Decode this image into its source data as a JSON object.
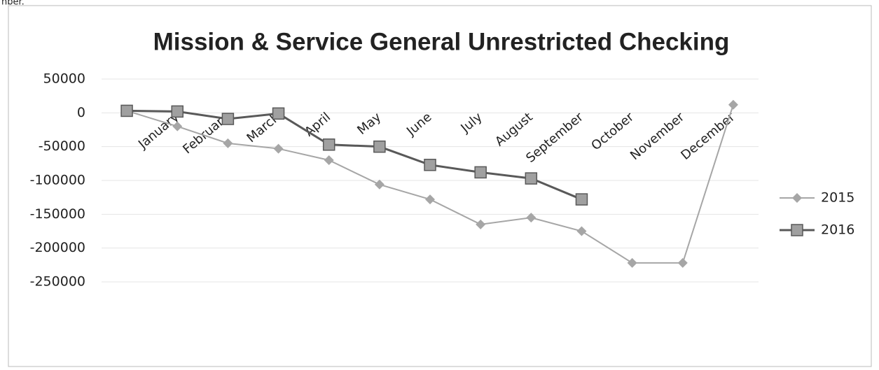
{
  "caption": "nber.",
  "chart_data": {
    "type": "line",
    "title": "Mission & Service General  Unrestricted Checking",
    "categories": [
      null,
      "January",
      "February",
      "March",
      "April",
      "May",
      "June",
      "July",
      "August",
      "September",
      "October",
      "November",
      "December"
    ],
    "series": [
      {
        "name": "2015",
        "color": "#a6a6a6",
        "marker": "diamond",
        "values": [
          3000,
          -20000,
          -45000,
          -53000,
          -70000,
          -106000,
          -128000,
          -165000,
          -155000,
          -175000,
          -222000,
          -222000,
          12000
        ]
      },
      {
        "name": "2016",
        "color": "#595959",
        "marker": "square",
        "values": [
          3000,
          2000,
          -9000,
          -1000,
          -47000,
          -50000,
          -77000,
          -88000,
          -97000,
          -128000,
          null,
          null,
          null
        ]
      }
    ],
    "ylim": [
      -250000,
      50000
    ],
    "yticks": [
      50000,
      0,
      -50000,
      -100000,
      -150000,
      -200000,
      -250000
    ],
    "grid": true,
    "legend": "right"
  }
}
